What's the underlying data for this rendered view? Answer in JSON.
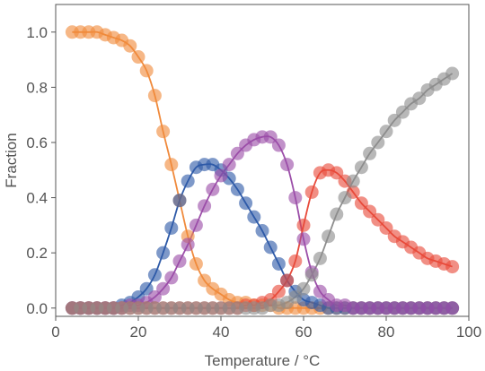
{
  "chart_data": {
    "type": "scatter",
    "title": "",
    "xlabel": "Temperature / °C",
    "ylabel": "Fraction",
    "xlim": [
      0,
      100
    ],
    "ylim": [
      -0.03,
      1.1
    ],
    "xticks": [
      0,
      20,
      40,
      60,
      80,
      100
    ],
    "yticks": [
      0.0,
      0.2,
      0.4,
      0.6,
      0.8,
      1.0
    ],
    "xtick_labels": [
      "0",
      "20",
      "40",
      "60",
      "80",
      "100"
    ],
    "ytick_labels": [
      "0.0",
      "0.2",
      "0.4",
      "0.6",
      "0.8",
      "1.0"
    ],
    "grid": false,
    "legend": "none",
    "x": [
      4,
      6,
      8,
      10,
      12,
      14,
      16,
      18,
      20,
      22,
      24,
      26,
      28,
      30,
      32,
      34,
      36,
      38,
      40,
      42,
      44,
      46,
      48,
      50,
      52,
      54,
      56,
      58,
      60,
      62,
      64,
      66,
      68,
      70,
      72,
      74,
      76,
      78,
      80,
      82,
      84,
      86,
      88,
      90,
      92,
      94,
      96
    ],
    "series": [
      {
        "color": "#f08a3c",
        "values": [
          1.0,
          1.0,
          1.0,
          1.0,
          0.99,
          0.98,
          0.97,
          0.95,
          0.91,
          0.86,
          0.77,
          0.64,
          0.52,
          0.39,
          0.26,
          0.16,
          0.1,
          0.07,
          0.05,
          0.03,
          0.02,
          0.02,
          0.01,
          0.01,
          0.01,
          0.0,
          0.0,
          0.0,
          0.0,
          0.0,
          0.0,
          0.0,
          0.0,
          0.0,
          0.0,
          0.0,
          0.0,
          0.0,
          0.0,
          0.0,
          0.0,
          0.0,
          0.0,
          0.0,
          0.0,
          0.0,
          0.0
        ]
      },
      {
        "color": "#2e5aa8",
        "values": [
          0.0,
          0.0,
          0.0,
          0.0,
          0.0,
          0.0,
          0.01,
          0.02,
          0.04,
          0.07,
          0.12,
          0.2,
          0.29,
          0.39,
          0.46,
          0.51,
          0.52,
          0.52,
          0.5,
          0.47,
          0.43,
          0.38,
          0.33,
          0.28,
          0.22,
          0.16,
          0.1,
          0.06,
          0.03,
          0.02,
          0.01,
          0.0,
          0.0,
          0.0,
          0.0,
          0.0,
          0.0,
          0.0,
          0.0,
          0.0,
          0.0,
          0.0,
          0.0,
          0.0,
          0.0,
          0.0,
          0.0
        ]
      },
      {
        "color": "#9b4ea8",
        "values": [
          0.0,
          0.0,
          0.0,
          0.0,
          0.0,
          0.0,
          0.0,
          0.01,
          0.01,
          0.02,
          0.04,
          0.07,
          0.11,
          0.17,
          0.23,
          0.3,
          0.37,
          0.43,
          0.48,
          0.52,
          0.56,
          0.59,
          0.61,
          0.62,
          0.62,
          0.59,
          0.52,
          0.4,
          0.25,
          0.13,
          0.06,
          0.03,
          0.01,
          0.01,
          0.0,
          0.0,
          0.0,
          0.0,
          0.0,
          0.0,
          0.0,
          0.0,
          0.0,
          0.0,
          0.0,
          0.0,
          0.0
        ]
      },
      {
        "color": "#e84a3a",
        "values": [
          0.0,
          0.0,
          0.0,
          0.0,
          0.0,
          0.0,
          0.0,
          0.0,
          0.0,
          0.0,
          0.0,
          0.0,
          0.0,
          0.0,
          0.0,
          0.0,
          0.0,
          0.0,
          0.0,
          0.0,
          0.0,
          0.01,
          0.01,
          0.02,
          0.03,
          0.06,
          0.1,
          0.17,
          0.3,
          0.42,
          0.49,
          0.5,
          0.49,
          0.46,
          0.42,
          0.38,
          0.35,
          0.32,
          0.29,
          0.26,
          0.24,
          0.22,
          0.2,
          0.18,
          0.17,
          0.16,
          0.15
        ]
      },
      {
        "color": "#8c8c8c",
        "values": [
          0.0,
          0.0,
          0.0,
          0.0,
          0.0,
          0.0,
          0.0,
          0.0,
          0.0,
          0.0,
          0.0,
          0.0,
          0.0,
          0.0,
          0.0,
          0.0,
          0.0,
          0.0,
          0.0,
          0.0,
          0.0,
          0.0,
          0.0,
          0.0,
          0.01,
          0.01,
          0.02,
          0.04,
          0.07,
          0.12,
          0.18,
          0.26,
          0.34,
          0.4,
          0.46,
          0.51,
          0.56,
          0.6,
          0.64,
          0.68,
          0.71,
          0.74,
          0.76,
          0.79,
          0.81,
          0.83,
          0.85
        ]
      }
    ]
  }
}
